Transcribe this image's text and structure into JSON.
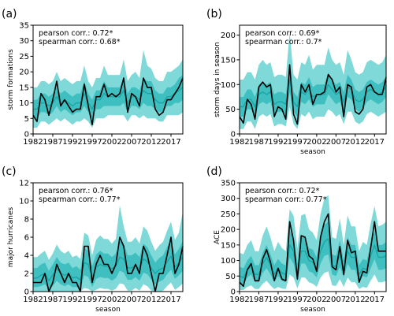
{
  "chart_data": [
    {
      "type": "area",
      "panel_label": "(a)",
      "xlabel": "",
      "ylabel": "storm formations",
      "xticks": [
        1982,
        1987,
        1992,
        1997,
        2002,
        2007,
        2012,
        2017
      ],
      "xlim": [
        1982,
        2020
      ],
      "yticks": [
        0,
        5,
        10,
        15,
        20,
        25,
        30,
        35
      ],
      "ylim": [
        0,
        35
      ],
      "annotations": [
        "pearson corr.: 0.72*",
        "spearman corr.: 0.68*"
      ],
      "x": [
        1982,
        1983,
        1984,
        1985,
        1986,
        1987,
        1988,
        1989,
        1990,
        1991,
        1992,
        1993,
        1994,
        1995,
        1996,
        1997,
        1998,
        1999,
        2000,
        2001,
        2002,
        2003,
        2004,
        2005,
        2006,
        2007,
        2008,
        2009,
        2010,
        2011,
        2012,
        2013,
        2014,
        2015,
        2016,
        2017,
        2018,
        2019,
        2020
      ],
      "observed": [
        6,
        4,
        13,
        11,
        6,
        11,
        17,
        9,
        11,
        9,
        7,
        8,
        8,
        16,
        9,
        3,
        12,
        12,
        16,
        12,
        13,
        12,
        13,
        18,
        7,
        13,
        12,
        9,
        18,
        15,
        15,
        8,
        6,
        7,
        11,
        11,
        13,
        15,
        18
      ],
      "median": [
        8,
        8,
        10,
        10,
        9,
        10,
        12,
        10,
        11,
        10,
        9,
        10,
        10,
        13,
        10,
        8,
        11,
        11,
        13,
        12,
        12,
        12,
        12,
        14,
        10,
        12,
        12,
        11,
        14,
        13,
        13,
        11,
        10,
        10,
        12,
        12,
        13,
        14,
        15
      ],
      "band_inner": {
        "low": [
          5,
          5,
          7,
          7,
          6,
          7,
          9,
          7,
          8,
          7,
          6,
          7,
          7,
          9,
          7,
          5,
          8,
          8,
          9,
          9,
          9,
          9,
          9,
          10,
          7,
          9,
          9,
          8,
          10,
          9,
          9,
          8,
          7,
          7,
          9,
          9,
          10,
          10,
          11
        ],
        "high": [
          11,
          11,
          13,
          13,
          12,
          13,
          15,
          13,
          14,
          13,
          12,
          13,
          13,
          17,
          13,
          11,
          14,
          14,
          17,
          15,
          15,
          15,
          15,
          18,
          13,
          15,
          15,
          14,
          18,
          17,
          17,
          14,
          13,
          13,
          15,
          15,
          16,
          18,
          19
        ]
      },
      "band_outer": {
        "low": [
          2,
          2,
          4,
          4,
          3,
          4,
          5,
          4,
          5,
          4,
          3,
          4,
          4,
          5,
          4,
          2,
          5,
          5,
          5,
          6,
          6,
          6,
          6,
          6,
          4,
          6,
          6,
          5,
          6,
          5,
          5,
          5,
          4,
          4,
          6,
          6,
          6,
          6,
          7
        ],
        "high": [
          15,
          15,
          17,
          17,
          16,
          17,
          20,
          17,
          18,
          17,
          16,
          17,
          17,
          22,
          17,
          15,
          18,
          18,
          22,
          19,
          19,
          19,
          19,
          24,
          17,
          19,
          20,
          18,
          27,
          22,
          21,
          18,
          17,
          17,
          20,
          20,
          21,
          22,
          24
        ]
      }
    },
    {
      "type": "area",
      "panel_label": "(b)",
      "xlabel": "season",
      "ylabel": "storm days in season",
      "xticks": [
        1982,
        1987,
        1992,
        1997,
        2002,
        2007,
        2012,
        2017
      ],
      "xlim": [
        1982,
        2020
      ],
      "yticks": [
        0,
        50,
        100,
        150,
        200
      ],
      "ylim": [
        0,
        220
      ],
      "annotations": [
        "pearson corr.: 0.69*",
        "spearman corr.: 0.7*"
      ],
      "x": [
        1982,
        1983,
        1984,
        1985,
        1986,
        1987,
        1988,
        1989,
        1990,
        1991,
        1992,
        1993,
        1994,
        1995,
        1996,
        1997,
        1998,
        1999,
        2000,
        2001,
        2002,
        2003,
        2004,
        2005,
        2006,
        2007,
        2008,
        2009,
        2010,
        2011,
        2012,
        2013,
        2014,
        2015,
        2016,
        2017,
        2018,
        2019,
        2020
      ],
      "observed": [
        35,
        22,
        70,
        60,
        30,
        95,
        105,
        95,
        100,
        35,
        55,
        50,
        30,
        140,
        40,
        20,
        100,
        85,
        100,
        60,
        80,
        80,
        85,
        120,
        110,
        85,
        95,
        35,
        100,
        95,
        45,
        40,
        50,
        95,
        100,
        85,
        80,
        80,
        115
      ],
      "median": [
        55,
        55,
        70,
        70,
        55,
        80,
        85,
        80,
        85,
        60,
        65,
        65,
        60,
        110,
        65,
        55,
        85,
        80,
        90,
        75,
        80,
        80,
        80,
        100,
        90,
        80,
        85,
        65,
        95,
        90,
        70,
        65,
        70,
        85,
        90,
        85,
        80,
        85,
        95
      ],
      "band_inner": {
        "low": [
          35,
          35,
          50,
          50,
          35,
          60,
          65,
          60,
          65,
          40,
          45,
          45,
          40,
          85,
          45,
          35,
          65,
          60,
          70,
          55,
          60,
          60,
          60,
          80,
          70,
          60,
          65,
          45,
          75,
          70,
          50,
          45,
          50,
          65,
          70,
          65,
          60,
          65,
          75
        ],
        "high": [
          75,
          75,
          90,
          90,
          75,
          100,
          105,
          100,
          105,
          80,
          85,
          85,
          80,
          135,
          85,
          75,
          105,
          100,
          115,
          95,
          100,
          100,
          100,
          125,
          110,
          100,
          105,
          85,
          120,
          110,
          90,
          85,
          90,
          105,
          110,
          105,
          100,
          105,
          115
        ]
      },
      "band_outer": {
        "low": [
          10,
          10,
          25,
          25,
          10,
          35,
          40,
          35,
          40,
          15,
          20,
          20,
          15,
          55,
          20,
          10,
          40,
          35,
          45,
          30,
          35,
          35,
          35,
          50,
          45,
          35,
          40,
          20,
          45,
          45,
          25,
          20,
          25,
          40,
          45,
          40,
          35,
          40,
          45
        ],
        "high": [
          110,
          110,
          125,
          125,
          110,
          140,
          150,
          140,
          145,
          115,
          120,
          120,
          115,
          205,
          120,
          110,
          145,
          140,
          160,
          130,
          140,
          140,
          140,
          175,
          150,
          140,
          145,
          120,
          170,
          150,
          125,
          120,
          125,
          145,
          150,
          145,
          140,
          145,
          160
        ]
      }
    },
    {
      "type": "area",
      "panel_label": "(c)",
      "xlabel": "season",
      "ylabel": "major hurricanes",
      "xticks": [
        1982,
        1987,
        1992,
        1997,
        2002,
        2007,
        2012,
        2017
      ],
      "xlim": [
        1982,
        2020
      ],
      "yticks": [
        0,
        2,
        4,
        6,
        8,
        10,
        12
      ],
      "ylim": [
        0,
        12
      ],
      "annotations": [
        "pearson corr.: 0.76*",
        "spearman corr.: 0.77*"
      ],
      "x": [
        1982,
        1983,
        1984,
        1985,
        1986,
        1987,
        1988,
        1989,
        1990,
        1991,
        1992,
        1993,
        1994,
        1995,
        1996,
        1997,
        1998,
        1999,
        2000,
        2001,
        2002,
        2003,
        2004,
        2005,
        2006,
        2007,
        2008,
        2009,
        2010,
        2011,
        2012,
        2013,
        2014,
        2015,
        2016,
        2017,
        2018,
        2019,
        2020
      ],
      "observed": [
        1,
        1,
        1,
        2,
        0,
        1,
        3,
        2,
        1,
        2,
        1,
        1,
        0,
        5,
        5,
        1,
        3,
        4,
        3,
        3,
        2,
        3,
        6,
        5,
        2,
        2,
        3,
        2,
        5,
        4,
        2,
        0,
        2,
        2,
        4,
        6,
        2,
        3,
        5
      ],
      "median": [
        1.5,
        1.5,
        1.8,
        2,
        1.2,
        1.8,
        2.5,
        2,
        1.8,
        2,
        1.5,
        1.6,
        1.3,
        3.2,
        3,
        1.6,
        2.7,
        3,
        2.8,
        2.8,
        2.5,
        2.8,
        3.8,
        3.6,
        2.6,
        2.6,
        2.9,
        2.5,
        3.6,
        3.3,
        2.6,
        2,
        2.4,
        2.6,
        3.3,
        3.9,
        2.7,
        3.2,
        3.8
      ],
      "band_inner": {
        "low": [
          0.5,
          0.5,
          0.6,
          0.8,
          0.3,
          0.6,
          1.2,
          0.8,
          0.6,
          0.8,
          0.5,
          0.5,
          0.3,
          1.8,
          1.6,
          0.5,
          1.4,
          1.6,
          1.5,
          1.5,
          1.2,
          1.5,
          2.3,
          2.1,
          1.3,
          1.3,
          1.6,
          1.2,
          2.1,
          1.9,
          1.3,
          0.8,
          1.1,
          1.3,
          1.9,
          2.4,
          1.4,
          1.8,
          2.3
        ],
        "high": [
          2.6,
          2.6,
          3,
          3.2,
          2.3,
          3,
          3.8,
          3.2,
          3,
          3.2,
          2.6,
          2.8,
          2.4,
          4.8,
          4.5,
          2.8,
          4.1,
          4.5,
          4.2,
          4.2,
          3.8,
          4.2,
          5.6,
          5.3,
          4,
          4,
          4.3,
          3.8,
          5.3,
          4.9,
          4,
          3.2,
          3.7,
          4,
          4.9,
          5.7,
          4.1,
          4.7,
          5.6
        ]
      },
      "band_outer": {
        "low": [
          0,
          0,
          0,
          0,
          0,
          0,
          0,
          0,
          0,
          0,
          0,
          0,
          0,
          0.4,
          0.3,
          0,
          0.2,
          0.4,
          0.3,
          0.3,
          0.1,
          0.3,
          0.9,
          0.8,
          0.1,
          0.1,
          0.4,
          0.1,
          0.8,
          0.6,
          0.1,
          0,
          0,
          0.1,
          0.6,
          1,
          0.2,
          0.5,
          0.9
        ],
        "high": [
          3.8,
          3.8,
          4.2,
          4.5,
          3.5,
          4.2,
          5.2,
          4.5,
          4.2,
          4.5,
          3.8,
          4,
          3.6,
          6.5,
          6.2,
          4,
          5.7,
          6.2,
          5.8,
          5.8,
          5.3,
          5.8,
          9.5,
          7.2,
          5.5,
          5.5,
          6,
          5.3,
          7.2,
          6.7,
          5.5,
          4.5,
          5.1,
          5.5,
          6.7,
          7.7,
          5.7,
          6.5,
          8.8
        ]
      }
    },
    {
      "type": "area",
      "panel_label": "(d)",
      "xlabel": "season",
      "ylabel": "ACE",
      "xticks": [
        1982,
        1987,
        1992,
        1997,
        2002,
        2007,
        2012,
        2017
      ],
      "xlim": [
        1982,
        2020
      ],
      "yticks": [
        0,
        50,
        100,
        150,
        200,
        250,
        300,
        350
      ],
      "ylim": [
        0,
        350
      ],
      "annotations": [
        "pearson corr.: 0.72*",
        "spearman corr.: 0.77*"
      ],
      "x": [
        1982,
        1983,
        1984,
        1985,
        1986,
        1987,
        1988,
        1989,
        1990,
        1991,
        1992,
        1993,
        1994,
        1995,
        1996,
        1997,
        1998,
        1999,
        2000,
        2001,
        2002,
        2003,
        2004,
        2005,
        2006,
        2007,
        2008,
        2009,
        2010,
        2011,
        2012,
        2013,
        2014,
        2015,
        2016,
        2017,
        2018,
        2019,
        2020
      ],
      "observed": [
        30,
        17,
        70,
        90,
        35,
        35,
        105,
        135,
        95,
        35,
        75,
        40,
        35,
        225,
        165,
        40,
        180,
        175,
        115,
        105,
        65,
        175,
        225,
        250,
        80,
        70,
        145,
        55,
        165,
        125,
        130,
        30,
        65,
        60,
        140,
        225,
        130,
        130,
        130
      ],
      "median": [
        50,
        45,
        70,
        80,
        55,
        55,
        90,
        110,
        85,
        55,
        75,
        60,
        55,
        150,
        130,
        60,
        130,
        130,
        100,
        95,
        75,
        130,
        160,
        170,
        85,
        80,
        120,
        70,
        130,
        110,
        110,
        55,
        75,
        70,
        115,
        150,
        110,
        110,
        115
      ],
      "band_inner": {
        "low": [
          25,
          20,
          45,
          55,
          30,
          30,
          60,
          75,
          55,
          30,
          50,
          35,
          30,
          110,
          90,
          35,
          90,
          90,
          65,
          60,
          45,
          90,
          115,
          120,
          55,
          50,
          80,
          45,
          90,
          70,
          70,
          30,
          50,
          45,
          75,
          105,
          70,
          70,
          75
        ],
        "high": [
          80,
          75,
          100,
          115,
          85,
          85,
          125,
          150,
          120,
          85,
          105,
          90,
          85,
          195,
          175,
          90,
          175,
          175,
          140,
          135,
          110,
          175,
          215,
          225,
          120,
          115,
          165,
          100,
          175,
          150,
          150,
          85,
          105,
          100,
          155,
          195,
          150,
          150,
          160
        ]
      },
      "band_outer": {
        "low": [
          5,
          5,
          15,
          20,
          8,
          8,
          25,
          35,
          20,
          8,
          15,
          10,
          8,
          55,
          45,
          10,
          45,
          45,
          30,
          25,
          15,
          45,
          60,
          65,
          20,
          18,
          40,
          15,
          45,
          30,
          30,
          8,
          15,
          12,
          35,
          55,
          30,
          30,
          35
        ],
        "high": [
          125,
          120,
          150,
          165,
          130,
          130,
          180,
          210,
          175,
          130,
          160,
          140,
          130,
          265,
          245,
          140,
          245,
          250,
          200,
          190,
          165,
          250,
          300,
          310,
          175,
          170,
          235,
          150,
          245,
          210,
          210,
          130,
          160,
          150,
          220,
          275,
          210,
          215,
          225
        ]
      }
    }
  ]
}
